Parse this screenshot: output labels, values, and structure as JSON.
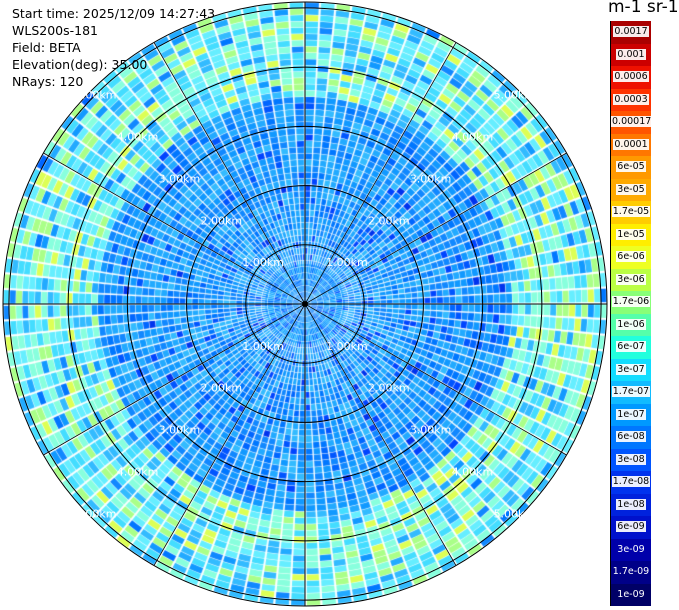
{
  "header": {
    "start_time": "Start time: 2025/12/09 14:27:43",
    "device": "WLS200s-181",
    "field": "Field: BETA",
    "elevation": "Elevation(deg): 35.00",
    "nrays": "NRays: 120"
  },
  "colorbar": {
    "unit_title": "m-1 sr-1",
    "labels": [
      "0.0017",
      "0.001",
      "0.0006",
      "0.0003",
      "0.00017",
      "0.0001",
      "6e-05",
      "3e-05",
      "1.7e-05",
      "1e-05",
      "6e-06",
      "3e-06",
      "1.7e-06",
      "1e-06",
      "6e-07",
      "3e-07",
      "1.7e-07",
      "1e-07",
      "6e-08",
      "3e-08",
      "1.7e-08",
      "1e-08",
      "6e-09",
      "3e-09",
      "1.7e-09",
      "1e-09"
    ],
    "colors": [
      "#aa0000",
      "#cc0000",
      "#ee1100",
      "#ff3300",
      "#ff5500",
      "#ff7700",
      "#ff9900",
      "#ffaa00",
      "#ffcc00",
      "#ffee00",
      "#eeff22",
      "#bbff44",
      "#88ff77",
      "#55ffaa",
      "#22ffdd",
      "#11ddff",
      "#11bbff",
      "#0099ff",
      "#0077ff",
      "#0055ff",
      "#0033ee",
      "#0022dd",
      "#0011cc",
      "#0000aa",
      "#000088",
      "#000066"
    ]
  },
  "chart_data": {
    "type": "heatmap",
    "projection": "polar (PPI scan)",
    "n_rays": 120,
    "elevation_deg": 35.0,
    "range_rings_km": [
      1.0,
      2.0,
      3.0,
      4.0,
      5.0
    ],
    "range_ring_labels": [
      "1.00km",
      "2.00km",
      "3.00km",
      "4.00km",
      "5.00km"
    ],
    "dominant_color_band": "1e-07 to 3e-08 (blue)",
    "annulus_band": "3e-07 to 6e-08 (cyan) near 4–5 km"
  }
}
